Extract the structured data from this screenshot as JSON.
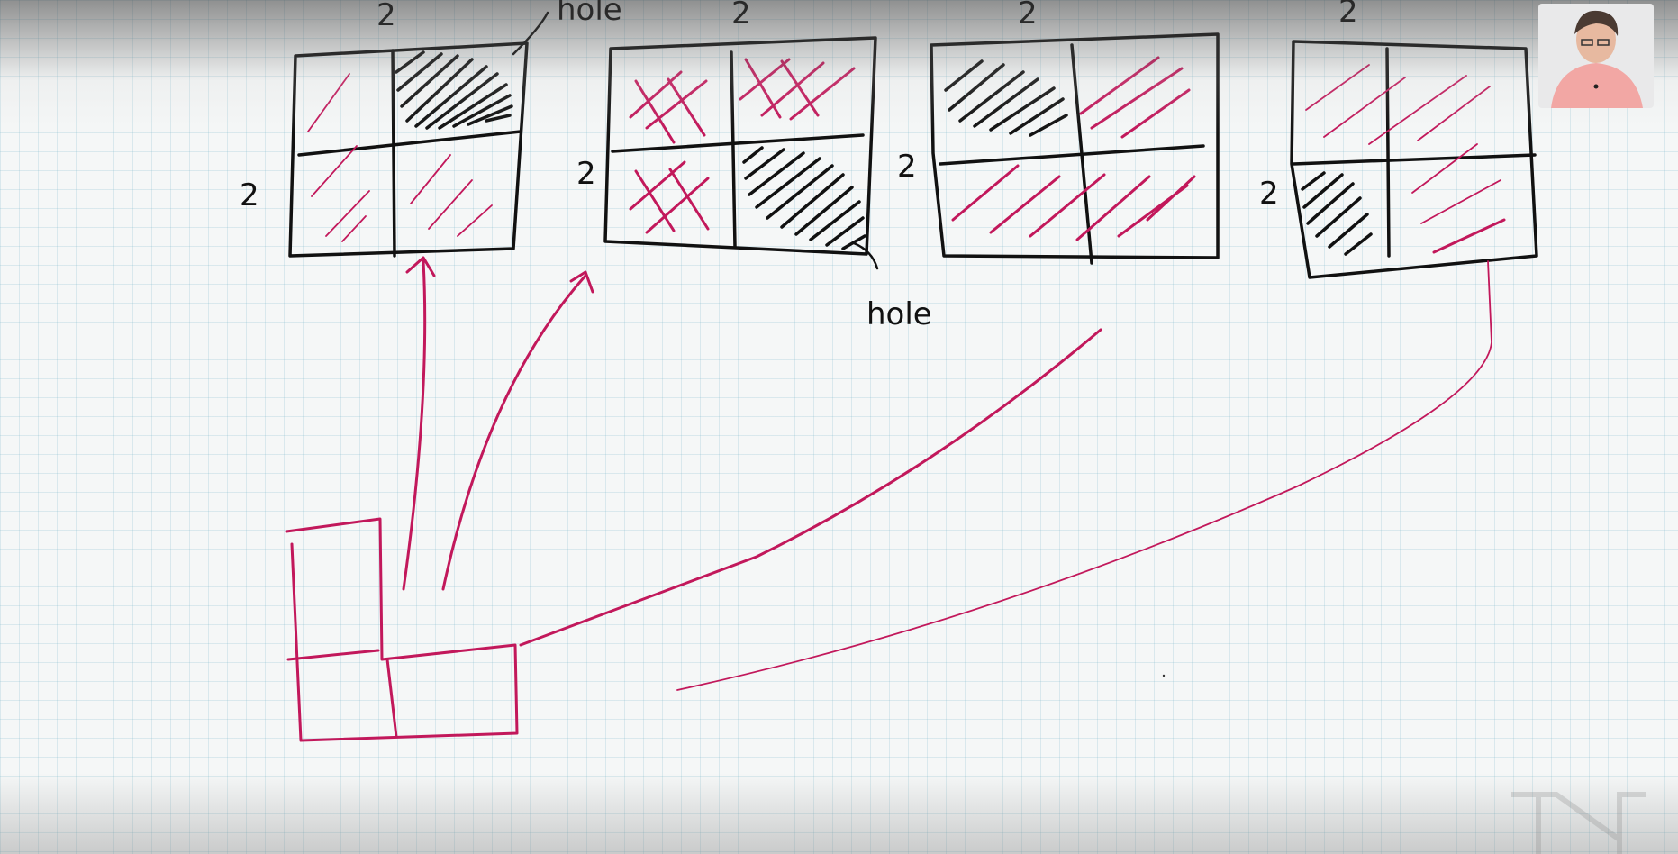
{
  "diagram": {
    "labels": {
      "hole_top": "hole",
      "hole_bottom": "hole",
      "top_dims": [
        "2",
        "2",
        "2",
        "2"
      ],
      "side_dims": [
        "2",
        "2",
        "2",
        "2"
      ]
    },
    "colors": {
      "ink": "#111111",
      "accent": "#c2185b",
      "grid": "#b4d6e0",
      "paper": "#f5f7f7"
    }
  }
}
